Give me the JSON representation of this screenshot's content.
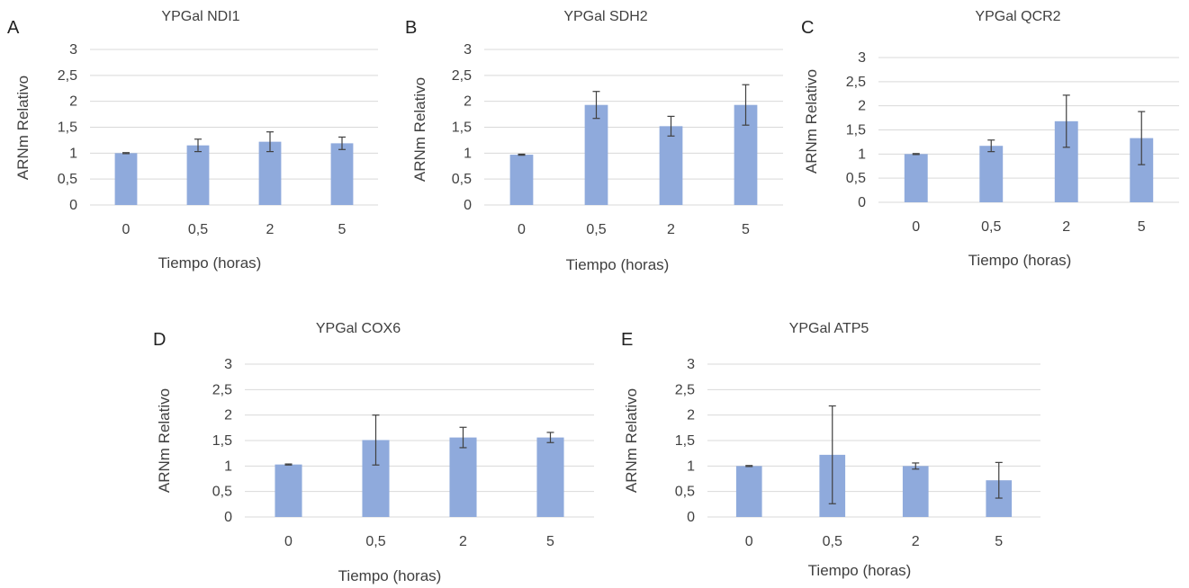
{
  "chart_data": [
    {
      "panel": "A",
      "type": "bar",
      "title": "YPGal NDI1",
      "xlabel": "Tiempo (horas)",
      "ylabel": "ARNm Relativo",
      "categories": [
        "0",
        "0,5",
        "2",
        "5"
      ],
      "values": [
        1.0,
        1.15,
        1.22,
        1.19
      ],
      "errors": [
        0.01,
        0.12,
        0.19,
        0.12
      ],
      "ylim": [
        0,
        3
      ],
      "yticks": [
        "0",
        "0,5",
        "1",
        "1,5",
        "2",
        "2,5",
        "3"
      ],
      "grid": true,
      "bar_color": "#8faadc"
    },
    {
      "panel": "B",
      "type": "bar",
      "title": "YPGal SDH2",
      "xlabel": "Tiempo (horas)",
      "ylabel": "ARNm Relativo",
      "categories": [
        "0",
        "0,5",
        "2",
        "5"
      ],
      "values": [
        0.97,
        1.93,
        1.52,
        1.93
      ],
      "errors": [
        0.01,
        0.26,
        0.19,
        0.39
      ],
      "ylim": [
        0,
        3
      ],
      "yticks": [
        "0",
        "0,5",
        "1",
        "1,5",
        "2",
        "2,5",
        "3"
      ],
      "grid": true,
      "bar_color": "#8faadc"
    },
    {
      "panel": "C",
      "type": "bar",
      "title": "YPGal QCR2",
      "xlabel": "Tiempo (horas)",
      "ylabel": "ARNm Relativo",
      "categories": [
        "0",
        "0,5",
        "2",
        "5"
      ],
      "values": [
        1.0,
        1.17,
        1.68,
        1.33
      ],
      "errors": [
        0.01,
        0.12,
        0.54,
        0.55
      ],
      "ylim": [
        0,
        3
      ],
      "yticks": [
        "0",
        "0,5",
        "1",
        "1,5",
        "2",
        "2,5",
        "3"
      ],
      "grid": true,
      "bar_color": "#8faadc"
    },
    {
      "panel": "D",
      "type": "bar",
      "title": "YPGal COX6",
      "xlabel": "Tiempo (horas)",
      "ylabel": "ARNm Relativo",
      "categories": [
        "0",
        "0,5",
        "2",
        "5"
      ],
      "values": [
        1.03,
        1.51,
        1.56,
        1.56
      ],
      "errors": [
        0.01,
        0.49,
        0.2,
        0.1
      ],
      "ylim": [
        0,
        3
      ],
      "yticks": [
        "0",
        "0,5",
        "1",
        "1,5",
        "2",
        "2,5",
        "3"
      ],
      "grid": true,
      "bar_color": "#8faadc"
    },
    {
      "panel": "E",
      "type": "bar",
      "title": "YPGal ATP5",
      "xlabel": "Tiempo (horas)",
      "ylabel": "ARNm Relativo",
      "categories": [
        "0",
        "0,5",
        "2",
        "5"
      ],
      "values": [
        1.0,
        1.22,
        1.0,
        0.72
      ],
      "errors": [
        0.01,
        0.96,
        0.06,
        0.35
      ],
      "ylim": [
        0,
        3
      ],
      "yticks": [
        "0",
        "0,5",
        "1",
        "1,5",
        "2",
        "2,5",
        "3"
      ],
      "grid": true,
      "bar_color": "#8faadc"
    }
  ]
}
